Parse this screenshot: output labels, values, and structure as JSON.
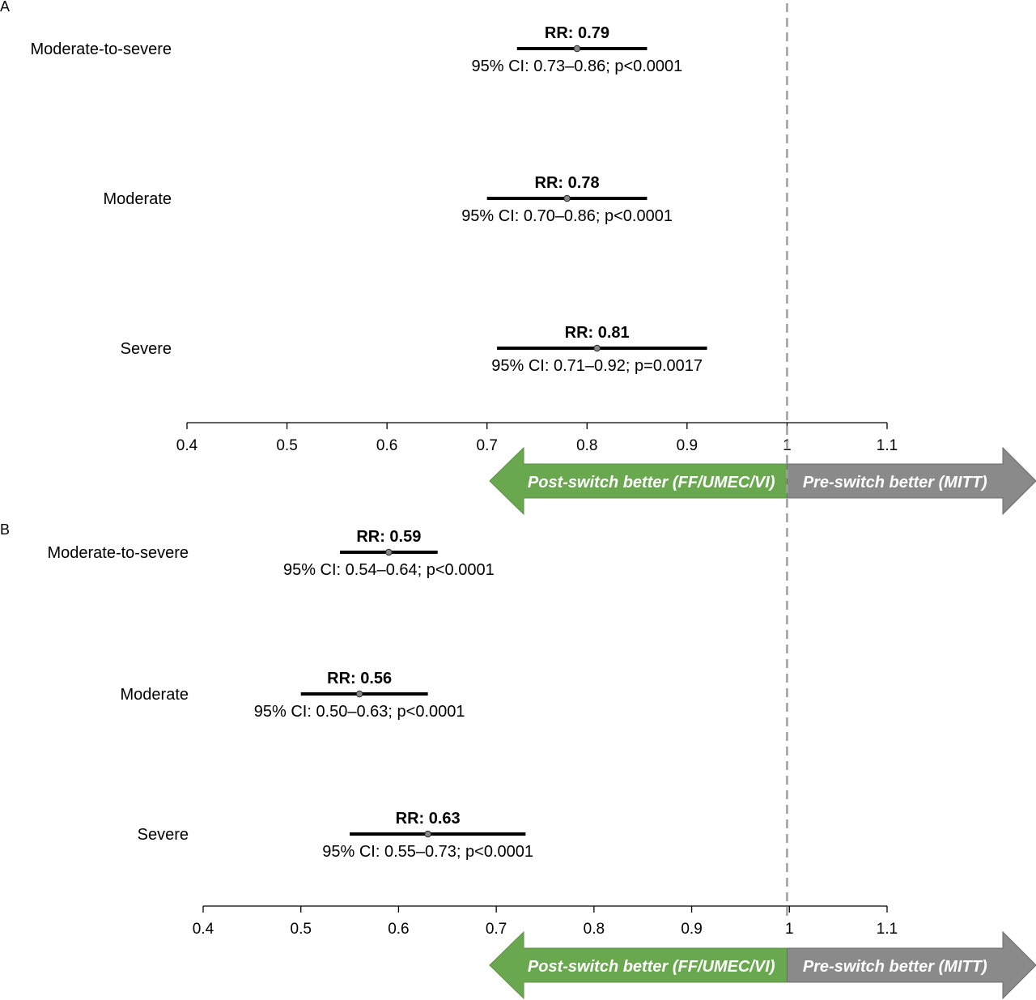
{
  "chart_data": [
    {
      "type": "forest",
      "panel_label": "A",
      "xlim": [
        0.4,
        1.1
      ],
      "x_ticks": [
        "0.4",
        "0.5",
        "0.6",
        "0.7",
        "0.8",
        "0.9",
        "1",
        "1.1"
      ],
      "reference_line": 1,
      "rows": [
        {
          "label": "Moderate-to-severe",
          "rr": 0.79,
          "ci_low": 0.73,
          "ci_high": 0.86,
          "rr_text": "RR: 0.79",
          "ci_text": "95% CI: 0.73–0.86; p<0.0001"
        },
        {
          "label": "Moderate",
          "rr": 0.78,
          "ci_low": 0.7,
          "ci_high": 0.86,
          "rr_text": "RR: 0.78",
          "ci_text": "95% CI: 0.70–0.86; p<0.0001"
        },
        {
          "label": "Severe",
          "rr": 0.81,
          "ci_low": 0.71,
          "ci_high": 0.92,
          "rr_text": "RR: 0.81",
          "ci_text": "95% CI: 0.71–0.92; p=0.0017"
        }
      ],
      "arrows": {
        "left": "Post-switch better (FF/UMEC/VI)",
        "right": "Pre-switch better (MITT)"
      }
    },
    {
      "type": "forest",
      "panel_label": "B",
      "xlim": [
        0.4,
        1.1
      ],
      "x_ticks": [
        "0.4",
        "0.5",
        "0.6",
        "0.7",
        "0.8",
        "0.9",
        "1",
        "1.1"
      ],
      "reference_line": 1,
      "rows": [
        {
          "label": "Moderate-to-severe",
          "rr": 0.59,
          "ci_low": 0.54,
          "ci_high": 0.64,
          "rr_text": "RR: 0.59",
          "ci_text": "95% CI: 0.54–0.64; p<0.0001"
        },
        {
          "label": "Moderate",
          "rr": 0.56,
          "ci_low": 0.5,
          "ci_high": 0.63,
          "rr_text": "RR: 0.56",
          "ci_text": "95% CI: 0.50–0.63; p<0.0001"
        },
        {
          "label": "Severe",
          "rr": 0.63,
          "ci_low": 0.55,
          "ci_high": 0.73,
          "rr_text": "RR: 0.63",
          "ci_text": "95% CI: 0.55–0.73; p<0.0001"
        }
      ],
      "arrows": {
        "left": "Post-switch better (FF/UMEC/VI)",
        "right": "Pre-switch better (MITT)"
      }
    }
  ],
  "colors": {
    "left_arrow": "#6aa84f",
    "right_arrow": "#8a8a8a",
    "reference_line": "#a0a0a0",
    "point": "#888888"
  }
}
